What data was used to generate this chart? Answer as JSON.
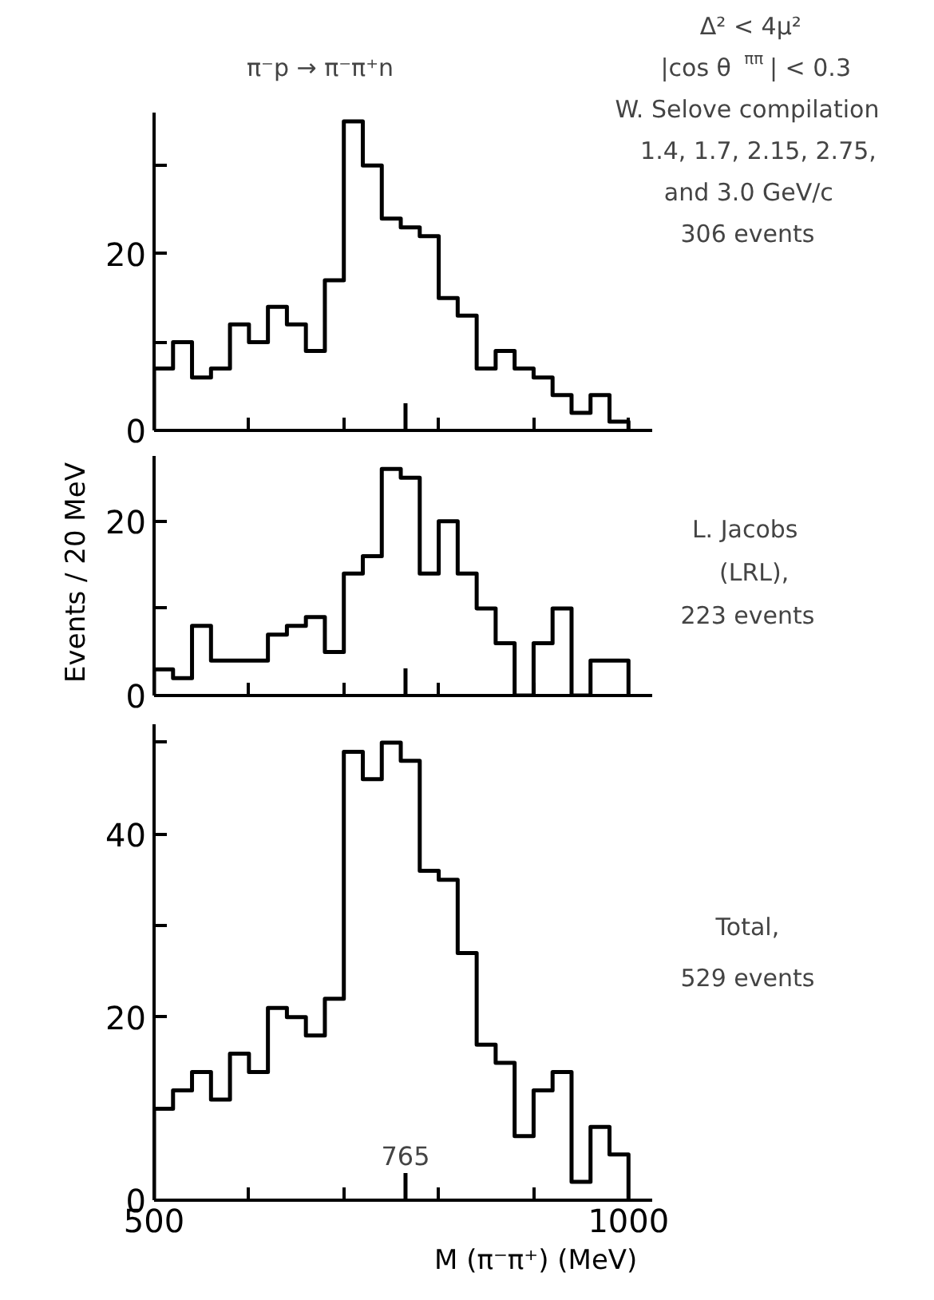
{
  "chart_data": [
    {
      "type": "histogram",
      "title": "π⁻p → π⁻π⁺n",
      "color": "#000000",
      "annotations": [
        "Δ² < 4μ²",
        "|cos θ$_{ππ}$| < 0.3",
        "W. Selove compilation",
        "1.4, 1.7, 2.15, 2.75,",
        "and 3.0 GeV/c",
        "306 events"
      ],
      "bins": [
        500,
        520,
        540,
        560,
        580,
        600,
        620,
        640,
        660,
        680,
        700,
        720,
        740,
        760,
        780,
        800,
        820,
        840,
        860,
        880,
        900,
        920,
        940,
        960,
        980,
        1000
      ],
      "values": [
        7,
        10,
        6,
        7,
        12,
        10,
        14,
        12,
        9,
        17,
        35,
        30,
        24,
        23,
        22,
        15,
        13,
        7,
        9,
        7,
        6,
        4,
        2,
        4,
        1
      ],
      "xlim": [
        500,
        1025
      ],
      "xticks": [
        500,
        600,
        700,
        800,
        900,
        1000
      ],
      "ylim": [
        0,
        36
      ],
      "yticks": [
        0,
        {
          "value": 10,
          "label": null
        },
        20,
        {
          "value": 30,
          "label": null
        }
      ],
      "ref_lines": [
        {
          "axis": "x",
          "value": 765
        }
      ],
      "tick_labels": "y",
      "grid": false
    },
    {
      "type": "histogram",
      "color": "#000000",
      "ylabel": "Events / 20 MeV",
      "annotations": [
        "L. Jacobs",
        "(LRL),",
        "223 events"
      ],
      "bins": [
        500,
        520,
        540,
        560,
        580,
        600,
        620,
        640,
        660,
        680,
        700,
        720,
        740,
        760,
        780,
        800,
        820,
        840,
        860,
        880,
        900,
        920,
        940,
        960,
        980,
        1000
      ],
      "values": [
        3,
        2,
        8,
        4,
        4,
        4,
        7,
        8,
        9,
        5,
        14,
        16,
        26,
        25,
        14,
        20,
        14,
        10,
        6,
        0,
        6,
        10,
        0,
        4,
        4
      ],
      "xlim": [
        500,
        1025
      ],
      "xticks": [
        500,
        600,
        700,
        800,
        900,
        1000
      ],
      "ylim": [
        0,
        27.5
      ],
      "yticks": [
        0,
        {
          "value": 10,
          "label": null
        },
        20
      ],
      "ref_lines": [
        {
          "axis": "x",
          "value": 765
        }
      ],
      "tick_labels": "y",
      "grid": false
    },
    {
      "type": "histogram",
      "color": "#000000",
      "xlabel": "M (π⁻π⁺)   (MeV)",
      "annotations": [
        "Total,",
        "529 events"
      ],
      "bins": [
        500,
        520,
        540,
        560,
        580,
        600,
        620,
        640,
        660,
        680,
        700,
        720,
        740,
        760,
        780,
        800,
        820,
        840,
        860,
        880,
        900,
        920,
        940,
        960,
        980,
        1000
      ],
      "values": [
        10,
        12,
        14,
        11,
        16,
        14,
        21,
        20,
        18,
        22,
        49,
        46,
        50,
        48,
        36,
        35,
        27,
        17,
        15,
        7,
        12,
        14,
        2,
        8,
        5
      ],
      "xlim": [
        500,
        1025
      ],
      "xticks": [
        {
          "value": 500,
          "label": "500"
        },
        {
          "value": 600,
          "label": null
        },
        {
          "value": 700,
          "label": null
        },
        {
          "value": 800,
          "label": null
        },
        {
          "value": 900,
          "label": null
        },
        {
          "value": 1000,
          "label": "1000"
        }
      ],
      "ylim": [
        0,
        52
      ],
      "yticks": [
        0,
        {
          "value": 10,
          "label": null
        },
        20,
        {
          "value": 30,
          "label": null
        },
        40,
        {
          "value": 50,
          "label": null
        }
      ],
      "ref_lines": [
        {
          "axis": "x",
          "value": 765,
          "label": "765"
        }
      ],
      "grid": false
    }
  ]
}
